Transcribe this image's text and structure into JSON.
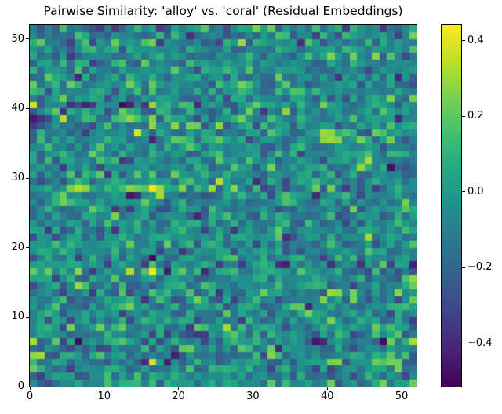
{
  "figure": {
    "background": "#ffffff"
  },
  "chart_data": {
    "type": "heatmap",
    "title": "Pairwise Similarity: 'alloy' vs. 'coral' (Residual Embeddings)",
    "xlabel": "",
    "ylabel": "",
    "n_rows": 52,
    "n_cols": 52,
    "x_range": [
      0,
      52
    ],
    "y_range": [
      0,
      52
    ],
    "origin": "lower",
    "grid": false,
    "x_ticks": [
      0,
      10,
      20,
      30,
      40,
      50
    ],
    "x_tick_labels": [
      "0",
      "10",
      "20",
      "30",
      "40",
      "50"
    ],
    "y_ticks": [
      0,
      10,
      20,
      30,
      40,
      50
    ],
    "y_tick_labels": [
      "0",
      "10",
      "20",
      "30",
      "40",
      "50"
    ],
    "colormap": "viridis",
    "colormap_stops": [
      [
        0.0,
        "#440154"
      ],
      [
        0.1,
        "#482475"
      ],
      [
        0.2,
        "#414487"
      ],
      [
        0.3,
        "#355f8d"
      ],
      [
        0.4,
        "#2a788e"
      ],
      [
        0.5,
        "#21918c"
      ],
      [
        0.6,
        "#22a884"
      ],
      [
        0.7,
        "#44bf70"
      ],
      [
        0.8,
        "#7ad151"
      ],
      [
        0.9,
        "#bddf26"
      ],
      [
        1.0,
        "#fde725"
      ]
    ],
    "vmin": -0.514,
    "vmax": 0.441,
    "colorbar": {
      "position": "right",
      "ticks": [
        0.4,
        0.2,
        0.0,
        -0.2,
        -0.4
      ],
      "tick_labels": [
        "0.4",
        "0.2",
        "0.0",
        "−0.2",
        "−0.4"
      ]
    },
    "values_spec": {
      "note": "52x52 noise-like similarity matrix estimated from pixels; background regenerated deterministically, salient extremes listed explicitly",
      "generator": {
        "algorithm": "mulberry32-boxmuller",
        "seed": 5,
        "mean": -0.06,
        "std": 0.13,
        "clip": [
          -0.5,
          0.4
        ]
      },
      "row_boosts": {
        "16": 0.03,
        "28": 0.03
      },
      "col_boosts": {
        "16": 0.02
      },
      "hotspots": [
        [
          16,
          16,
          0.43
        ],
        [
          13,
          16,
          0.34
        ],
        [
          6,
          16,
          0.28
        ],
        [
          2,
          16,
          0.22
        ],
        [
          20,
          16,
          0.2
        ],
        [
          16,
          28,
          0.42
        ],
        [
          6,
          28,
          0.34
        ],
        [
          5,
          28,
          0.25
        ],
        [
          7,
          28,
          0.28
        ],
        [
          13,
          28,
          0.27
        ],
        [
          14,
          28,
          0.22
        ],
        [
          20,
          28,
          0.26
        ],
        [
          27,
          28,
          0.26
        ],
        [
          38,
          28,
          0.22
        ],
        [
          0,
          40,
          0.38
        ],
        [
          16,
          40,
          0.3
        ],
        [
          4,
          38,
          0.33
        ],
        [
          13,
          38,
          0.27
        ],
        [
          16,
          38,
          0.26
        ],
        [
          21,
          37,
          0.24
        ],
        [
          22,
          37,
          0.22
        ],
        [
          12,
          39,
          0.22
        ],
        [
          0,
          4,
          0.28
        ],
        [
          0,
          2,
          0.22
        ],
        [
          0,
          43,
          0.22
        ],
        [
          2,
          44,
          0.2
        ],
        [
          13,
          43,
          0.24
        ],
        [
          16,
          43,
          0.22
        ],
        [
          40,
          13,
          0.3
        ],
        [
          41,
          13,
          0.27
        ],
        [
          39,
          12,
          0.25
        ],
        [
          43,
          13,
          0.24
        ],
        [
          43,
          12,
          0.24
        ],
        [
          49,
          13,
          0.28
        ],
        [
          51,
          12,
          0.22
        ],
        [
          39,
          36,
          0.3
        ],
        [
          40,
          36,
          0.28
        ],
        [
          40,
          35,
          0.3
        ],
        [
          41,
          35,
          0.26
        ],
        [
          39,
          35,
          0.27
        ],
        [
          44,
          35,
          0.24
        ],
        [
          46,
          36,
          0.22
        ],
        [
          28,
          49,
          0.3
        ],
        [
          16,
          49,
          0.25
        ],
        [
          11,
          49,
          0.22
        ],
        [
          32,
          51,
          0.22
        ],
        [
          40,
          47,
          0.26
        ],
        [
          43,
          47,
          0.24
        ],
        [
          46,
          47,
          0.28
        ],
        [
          51,
          50,
          0.24
        ],
        [
          48,
          41,
          0.26
        ],
        [
          51,
          41,
          0.24
        ],
        [
          46,
          8,
          0.22
        ],
        [
          5,
          8,
          0.24
        ],
        [
          33,
          22,
          0.22
        ],
        [
          8,
          33,
          0.22
        ],
        [
          51,
          6,
          0.32
        ],
        [
          32,
          4,
          0.26
        ],
        [
          32,
          5,
          0.22
        ],
        [
          41,
          3,
          0.26
        ],
        [
          40,
          3,
          0.24
        ],
        [
          48,
          3,
          0.24
        ],
        [
          46,
          3,
          0.22
        ],
        [
          49,
          2,
          0.24
        ],
        [
          47,
          0,
          0.24
        ],
        [
          40,
          0,
          0.22
        ],
        [
          51,
          0,
          0.22
        ],
        [
          18,
          16,
          -0.44
        ],
        [
          8,
          16,
          -0.35
        ],
        [
          23,
          16,
          -0.4
        ],
        [
          15,
          17,
          -0.34
        ],
        [
          13,
          27,
          -0.46
        ],
        [
          14,
          27,
          -0.4
        ],
        [
          34,
          17,
          -0.42
        ],
        [
          33,
          17,
          -0.38
        ],
        [
          28,
          17,
          -0.34
        ],
        [
          40,
          17,
          -0.38
        ],
        [
          44,
          17,
          -0.38
        ],
        [
          48,
          17,
          -0.33
        ],
        [
          51,
          17,
          -0.42
        ],
        [
          5,
          40,
          -0.38
        ],
        [
          7,
          40,
          -0.42
        ],
        [
          8,
          40,
          -0.36
        ],
        [
          12,
          40,
          -0.48
        ],
        [
          13,
          40,
          -0.42
        ],
        [
          15,
          40,
          -0.36
        ],
        [
          22,
          40,
          -0.4
        ],
        [
          0,
          38,
          -0.44
        ],
        [
          1,
          38,
          -0.38
        ],
        [
          0,
          37,
          -0.36
        ],
        [
          21,
          50,
          -0.38
        ],
        [
          9,
          51,
          -0.34
        ],
        [
          36,
          49,
          -0.38
        ],
        [
          42,
          51,
          -0.34
        ],
        [
          49,
          44,
          -0.4
        ],
        [
          38,
          50,
          -0.34
        ],
        [
          45,
          45,
          -0.32
        ],
        [
          41,
          44,
          -0.36
        ],
        [
          18,
          3,
          -0.42
        ],
        [
          22,
          7,
          -0.36
        ],
        [
          28,
          9,
          -0.34
        ],
        [
          47,
          51,
          -0.36
        ],
        [
          11,
          22,
          -0.36
        ],
        [
          2,
          22,
          -0.34
        ],
        [
          38,
          6,
          -0.46
        ],
        [
          39,
          6,
          -0.4
        ],
        [
          47,
          6,
          -0.48
        ],
        [
          38,
          2,
          -0.32
        ],
        [
          40,
          2,
          -0.3
        ],
        [
          43,
          1,
          -0.3
        ]
      ]
    }
  }
}
